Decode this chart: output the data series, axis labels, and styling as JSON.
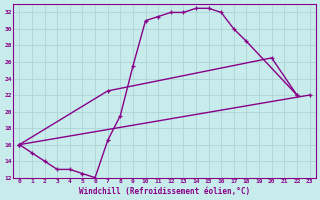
{
  "xlabel": "Windchill (Refroidissement éolien,°C)",
  "bg_color": "#c8ecec",
  "grid_color": "#b0d8d8",
  "line_color": "#880088",
  "xlim": [
    -0.5,
    23.5
  ],
  "ylim": [
    12,
    33
  ],
  "xticks": [
    0,
    1,
    2,
    3,
    4,
    5,
    6,
    7,
    8,
    9,
    10,
    11,
    12,
    13,
    14,
    15,
    16,
    17,
    18,
    19,
    20,
    21,
    22,
    23
  ],
  "yticks": [
    12,
    14,
    16,
    18,
    20,
    22,
    24,
    26,
    28,
    30,
    32
  ],
  "curve1_x": [
    0,
    1,
    2,
    3,
    4,
    5,
    6,
    7,
    8,
    9,
    10,
    11,
    12,
    13,
    14,
    15,
    16,
    17,
    18,
    22
  ],
  "curve1_y": [
    16.0,
    15.0,
    14.0,
    13.0,
    13.0,
    12.5,
    12.0,
    16.5,
    19.5,
    25.5,
    31.0,
    31.5,
    32.0,
    32.0,
    32.5,
    32.5,
    32.0,
    30.0,
    28.5,
    22.0
  ],
  "curve2_x": [
    0,
    7,
    20,
    22
  ],
  "curve2_y": [
    16.0,
    22.5,
    26.5,
    22.0
  ],
  "curve3_x": [
    0,
    23
  ],
  "curve3_y": [
    16.0,
    22.0
  ]
}
